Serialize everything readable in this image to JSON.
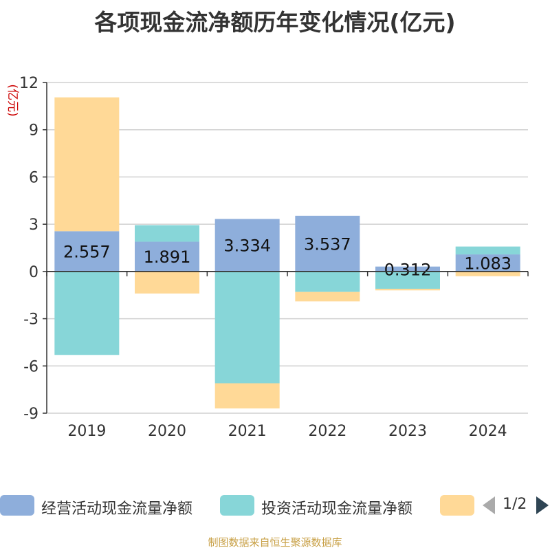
{
  "chart_data": {
    "type": "bar",
    "stacked": true,
    "title": "各项现金流净额历年变化情况(亿元)",
    "ylabel": "(亿元)",
    "categories": [
      "2019",
      "2020",
      "2021",
      "2022",
      "2023",
      "2024"
    ],
    "ylim": [
      -9,
      12
    ],
    "yticks": [
      12,
      9,
      6,
      3,
      0,
      -3,
      -6,
      -9
    ],
    "grid": true,
    "legend_position": "bottom",
    "series": [
      {
        "name": "经营活动现金流量净额",
        "color": "#8eaedb",
        "values": [
          2.557,
          1.891,
          3.334,
          3.537,
          0.312,
          1.083
        ],
        "data_labels": [
          "2.557",
          "1.891",
          "3.334",
          "3.537",
          "0.312",
          "1.083"
        ]
      },
      {
        "name": "投资活动现金流量净额",
        "color": "#87d6d8",
        "values": [
          -5.3,
          1.05,
          -7.1,
          -1.3,
          -1.1,
          0.5
        ]
      },
      {
        "name": "",
        "color": "#ffd997",
        "values": [
          8.5,
          -1.4,
          -1.6,
          -0.6,
          -0.1,
          -0.3
        ]
      }
    ]
  },
  "legend": {
    "items": [
      {
        "label": "经营活动现金流量净额",
        "color": "#8eaedb"
      },
      {
        "label": "投资活动现金流量净额",
        "color": "#87d6d8"
      },
      {
        "label": "",
        "color": "#ffd997"
      }
    ],
    "pager_text": "1/2"
  },
  "source_note": "制图数据来自恒生聚源数据库"
}
